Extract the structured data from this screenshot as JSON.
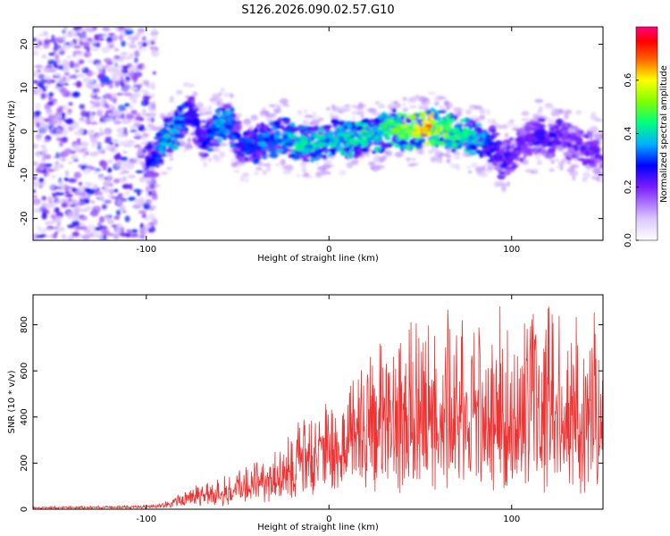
{
  "chart_data": [
    {
      "type": "heatmap",
      "title": "S126.2026.090.02.57.G10",
      "xlabel": "Height of straight line (km)",
      "ylabel": "Frequency (Hz)",
      "xlim": [
        -162,
        150
      ],
      "ylim": [
        -25,
        24
      ],
      "xticks": [
        -100,
        0,
        100
      ],
      "xtick_labels": [
        "-100",
        "0",
        "100"
      ],
      "yticks": [
        -20,
        -10,
        0,
        10,
        20
      ],
      "ytick_labels": [
        "-20",
        "-10",
        "0",
        "10",
        "20"
      ],
      "colorbar": {
        "label": "Normalized spectral amplitude",
        "range": [
          0.0,
          0.8
        ],
        "ticks": [
          0.0,
          0.2,
          0.4,
          0.6
        ],
        "tick_labels": [
          "0.0",
          "0.2",
          "0.4",
          "0.6"
        ]
      },
      "ridge": {
        "x": [
          -100,
          -95,
          -90,
          -85,
          -80,
          -75,
          -70,
          -65,
          -60,
          -55,
          -50,
          -45,
          -40,
          -35,
          -30,
          -25,
          -20,
          -15,
          -10,
          -5,
          0,
          5,
          10,
          15,
          20,
          25,
          30,
          35,
          40,
          45,
          50,
          55,
          60,
          65,
          70,
          75,
          80,
          85,
          90,
          95,
          100,
          105,
          110,
          115,
          120,
          125,
          130,
          135,
          140,
          145,
          150
        ],
        "freq": [
          -7,
          -6,
          -2,
          0,
          2,
          4,
          -2,
          -1,
          1,
          3,
          -2,
          -4,
          -3,
          -2,
          -2,
          -1,
          -2,
          -3,
          -3,
          -2,
          -2,
          -1,
          -2,
          -2,
          -1,
          -1,
          0,
          1,
          0,
          0,
          0,
          1,
          1,
          0,
          -1,
          -1,
          -2,
          -2,
          -3,
          -7,
          -5,
          -3,
          -2,
          -1,
          -2,
          -1,
          -2,
          -3,
          -4,
          -4,
          -5
        ],
        "amplitude": [
          0.25,
          0.3,
          0.38,
          0.4,
          0.35,
          0.28,
          0.25,
          0.32,
          0.38,
          0.4,
          0.3,
          0.3,
          0.32,
          0.35,
          0.38,
          0.38,
          0.4,
          0.45,
          0.4,
          0.42,
          0.38,
          0.42,
          0.4,
          0.42,
          0.45,
          0.42,
          0.45,
          0.48,
          0.5,
          0.55,
          0.62,
          0.7,
          0.55,
          0.5,
          0.48,
          0.42,
          0.4,
          0.35,
          0.3,
          0.25,
          0.22,
          0.22,
          0.22,
          0.25,
          0.24,
          0.25,
          0.22,
          0.22,
          0.22,
          0.22,
          0.22
        ]
      },
      "noise_region_x": [
        -162,
        -95
      ]
    },
    {
      "type": "line",
      "xlabel": "Height of straight line (km)",
      "ylabel": "SNR (10 * v/v)",
      "xlim": [
        -162,
        150
      ],
      "ylim": [
        0,
        930
      ],
      "xticks": [
        -100,
        0,
        100
      ],
      "xtick_labels": [
        "-100",
        "0",
        "100"
      ],
      "yticks": [
        0,
        200,
        400,
        600,
        800
      ],
      "ytick_labels": [
        "0",
        "200",
        "400",
        "600",
        "800"
      ],
      "color": "#ee3333",
      "envelope": {
        "x": [
          -162,
          -140,
          -120,
          -100,
          -90,
          -80,
          -70,
          -60,
          -50,
          -40,
          -30,
          -20,
          -10,
          0,
          10,
          20,
          30,
          40,
          50,
          60,
          70,
          80,
          90,
          100,
          110,
          120,
          130,
          140,
          150
        ],
        "max": [
          10,
          15,
          15,
          20,
          30,
          80,
          130,
          150,
          180,
          220,
          300,
          380,
          420,
          500,
          560,
          680,
          780,
          820,
          850,
          870,
          860,
          850,
          880,
          880,
          890,
          900,
          880,
          870,
          860
        ],
        "base": [
          5,
          8,
          8,
          10,
          15,
          40,
          55,
          60,
          70,
          90,
          110,
          130,
          160,
          200,
          230,
          260,
          280,
          290,
          300,
          310,
          310,
          300,
          300,
          290,
          290,
          300,
          290,
          280,
          280
        ]
      }
    }
  ]
}
